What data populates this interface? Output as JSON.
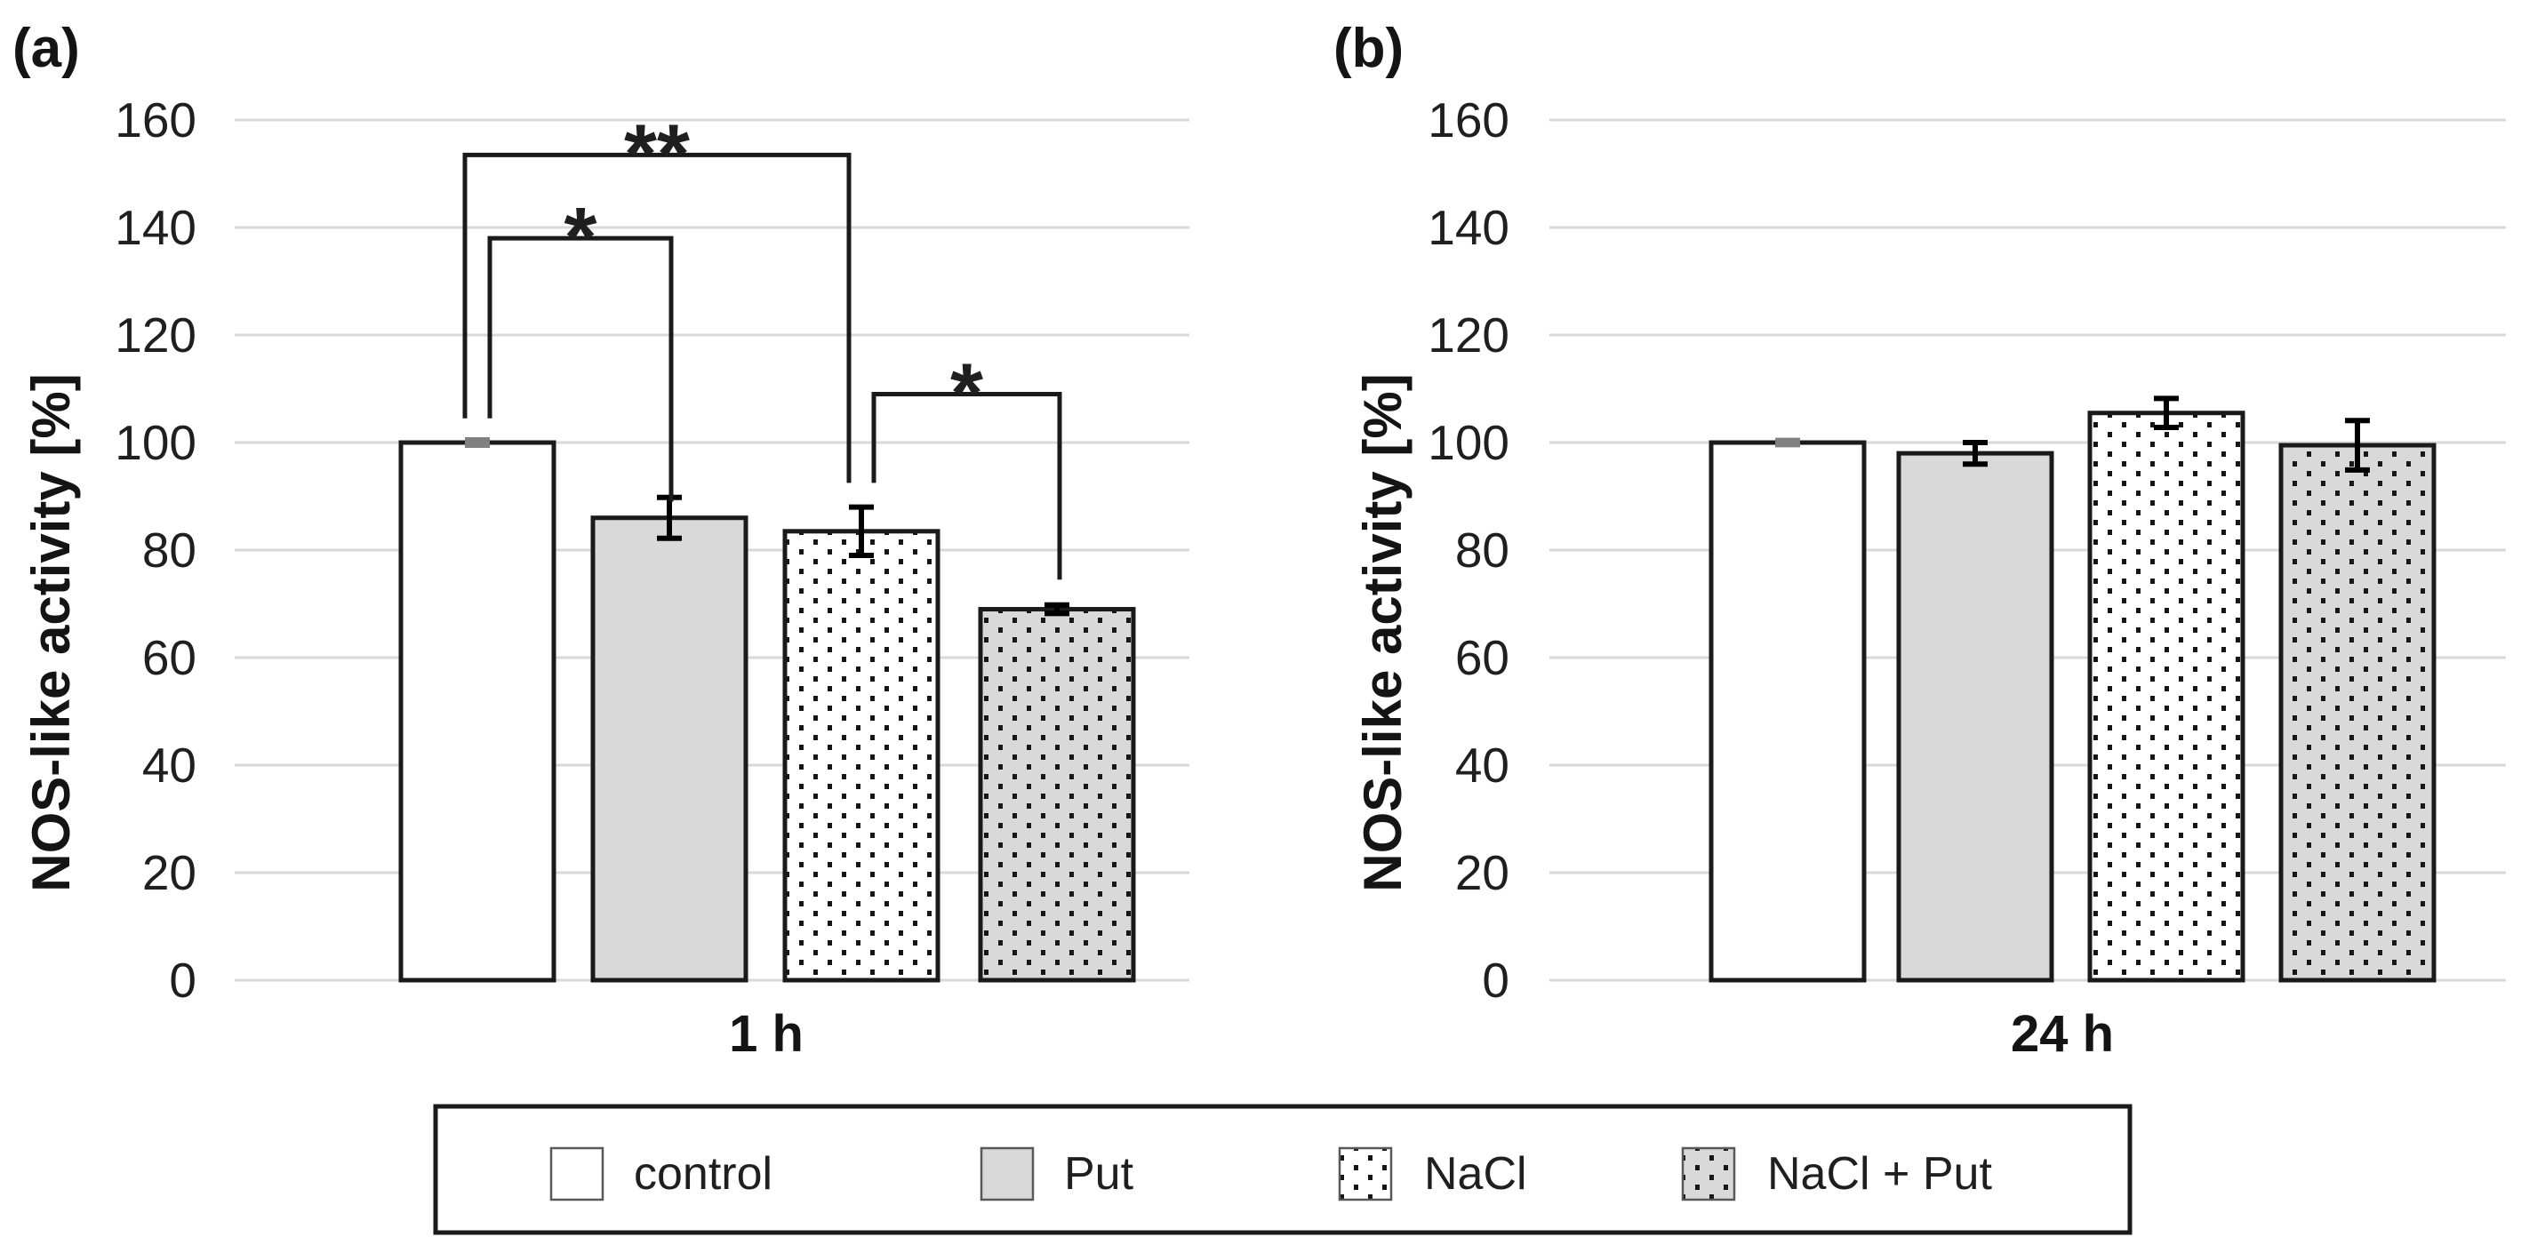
{
  "chart_data": [
    {
      "type": "bar",
      "panel_label": "(a)",
      "category": "1 h",
      "ylabel": "NOS-like activity [%]",
      "ylim": [
        0,
        160
      ],
      "ystep": 20,
      "yticks": [
        0,
        20,
        40,
        60,
        80,
        100,
        120,
        140,
        160
      ],
      "grid": true,
      "legend_position": "bottom",
      "series": [
        {
          "name": "control",
          "value": 100,
          "error": 0.5,
          "style": "white",
          "error_color": "#808080"
        },
        {
          "name": "Put",
          "value": 86,
          "error": 3.8,
          "style": "gray",
          "error_color": "#000000"
        },
        {
          "name": "NaCl",
          "value": 83.5,
          "error": 4.5,
          "style": "dots-white",
          "error_color": "#000000"
        },
        {
          "name": "NaCl + Put",
          "value": 69,
          "error": 0.8,
          "style": "dots-gray",
          "error_color": "#000000"
        }
      ],
      "significance": [
        {
          "label": "**",
          "from": "control",
          "to": "NaCl",
          "top": 153.5,
          "from_drop": 104.5,
          "to_drop": 92.5,
          "from_dx": -14,
          "to_dx": -14
        },
        {
          "label": "*",
          "from": "control",
          "to": "Put",
          "top": 138,
          "from_drop": 104.5,
          "to_drop": 89,
          "from_dx": 14,
          "to_dx": 2
        },
        {
          "label": "*",
          "from": "NaCl",
          "to": "NaCl + Put",
          "top": 109,
          "from_drop": 92.5,
          "to_drop": 74.5,
          "from_dx": 14,
          "to_dx": 3
        }
      ]
    },
    {
      "type": "bar",
      "panel_label": "(b)",
      "category": "24 h",
      "ylabel": "NOS-like activity [%]",
      "ylim": [
        0,
        160
      ],
      "ystep": 20,
      "yticks": [
        0,
        20,
        40,
        60,
        80,
        100,
        120,
        140,
        160
      ],
      "grid": true,
      "legend_position": "bottom",
      "series": [
        {
          "name": "control",
          "value": 100,
          "error": 0.4,
          "style": "white",
          "error_color": "#808080"
        },
        {
          "name": "Put",
          "value": 98,
          "error": 2.0,
          "style": "gray",
          "error_color": "#000000"
        },
        {
          "name": "NaCl",
          "value": 105.5,
          "error": 2.7,
          "style": "dots-white",
          "error_color": "#000000"
        },
        {
          "name": "NaCl + Put",
          "value": 99.5,
          "error": 4.6,
          "style": "dots-gray",
          "error_color": "#000000"
        }
      ],
      "significance": []
    }
  ],
  "legend": {
    "items": [
      {
        "label": "control",
        "style": "white"
      },
      {
        "label": "Put",
        "style": "gray"
      },
      {
        "label": "NaCl",
        "style": "dots-white"
      },
      {
        "label": "NaCl + Put",
        "style": "dots-gray"
      }
    ]
  },
  "styles": {
    "white": {
      "fill": "#ffffff",
      "pattern": false
    },
    "gray": {
      "fill": "#d9d9d9",
      "pattern": false
    },
    "dots-white": {
      "fill": "#ffffff",
      "pattern": true
    },
    "dots-gray": {
      "fill": "#d9d9d9",
      "pattern": true
    }
  },
  "colors": {
    "grid": "#d9d9d9",
    "bar_border": "#1a1a1a",
    "dot": "#161616",
    "bracket": "#1a1a1a",
    "text": "#1f1f1f",
    "legend_border": "#1a1a1a",
    "swatch_border": "#595959",
    "background": "#ffffff"
  }
}
